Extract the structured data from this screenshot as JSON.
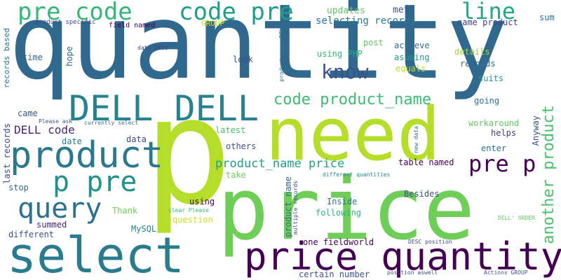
{
  "words": [
    {
      "text": "quantity",
      "color": "#31688e"
    },
    {
      "text": "p",
      "color": "#b5de2b"
    },
    {
      "text": "price",
      "color": "#6ece58"
    },
    {
      "text": "need",
      "color": "#b5de2b"
    },
    {
      "text": "select",
      "color": "#287c8e"
    },
    {
      "text": "price quantity",
      "color": "#440154"
    },
    {
      "text": "DELL DELL",
      "color": "#26828e"
    },
    {
      "text": "product",
      "color": "#2a788e"
    },
    {
      "text": "p pre",
      "color": "#21918c"
    },
    {
      "text": "query",
      "color": "#2c728e"
    },
    {
      "text": "pre code",
      "color": "#35b779"
    },
    {
      "text": "code pre",
      "color": "#1f9e89"
    },
    {
      "text": "line",
      "color": "#22a884"
    },
    {
      "text": "know",
      "color": "#3b528b"
    },
    {
      "text": "pre p",
      "color": "#440154"
    },
    {
      "text": "code product_name",
      "color": "#3dbc74"
    },
    {
      "text": "product_name price",
      "color": "#1fa088"
    },
    {
      "text": "another product",
      "color": "#4ac16d"
    },
    {
      "text": "DELL code",
      "color": "#482475"
    },
    {
      "text": "updates",
      "color": "#5ec962"
    },
    {
      "text": "met",
      "color": "#3b528b"
    },
    {
      "text": "selecting records",
      "color": "#29798e"
    },
    {
      "text": "name product",
      "color": "#433e85"
    },
    {
      "text": "sum",
      "color": "#2c728e"
    },
    {
      "text": "GROUP",
      "color": "#c8e020"
    },
    {
      "text": "field named",
      "color": "#440154"
    },
    {
      "text": "product specific",
      "color": "#3e4989"
    },
    {
      "text": "records based",
      "color": "#2a788e"
    },
    {
      "text": "time",
      "color": "#31688e"
    },
    {
      "text": "hope",
      "color": "#30697e"
    },
    {
      "text": "look",
      "color": "#3e4989"
    },
    {
      "text": "post",
      "color": "#5ec962"
    },
    {
      "text": "achieve",
      "color": "#2f6c8e"
    },
    {
      "text": "asuming",
      "color": "#1f998a"
    },
    {
      "text": "equals",
      "color": "#b5de2b"
    },
    {
      "text": "details",
      "color": "#a2da37"
    },
    {
      "text": "records",
      "color": "#31688e"
    },
    {
      "text": "suits",
      "color": "#1f9e89"
    },
    {
      "text": "using PHP",
      "color": "#2eb37c"
    },
    {
      "text": "date DESC",
      "color": "#3e4989"
    },
    {
      "text": "product_name DELL'",
      "color": "#2a788e"
    },
    {
      "text": "came",
      "color": "#3b528b"
    },
    {
      "text": "Please ask",
      "color": "#3b528b"
    },
    {
      "text": "currently select",
      "color": "#2c728e"
    },
    {
      "text": "going",
      "color": "#2c728e"
    },
    {
      "text": "workaround",
      "color": "#5ec962"
    },
    {
      "text": "helps",
      "color": "#433e85"
    },
    {
      "text": "Anyway",
      "color": "#3b528b"
    },
    {
      "text": "latest",
      "color": "#4ac16d"
    },
    {
      "text": "data",
      "color": "#3e4989"
    },
    {
      "text": "date",
      "color": "#2a788e"
    },
    {
      "text": "others",
      "color": "#3b528b"
    },
    {
      "text": "enter",
      "color": "#2c728e"
    },
    {
      "text": "last records",
      "color": "#3e4989"
    },
    {
      "text": "new data",
      "color": "#2c728e"
    },
    {
      "text": "take",
      "color": "#6ece58"
    },
    {
      "text": "table named",
      "color": "#440154"
    },
    {
      "text": "different quantities",
      "color": "#26828e"
    },
    {
      "text": "stop",
      "color": "#31688e"
    },
    {
      "text": "Besides",
      "color": "#3b528b"
    },
    {
      "text": "using",
      "color": "#440154"
    },
    {
      "text": "product name",
      "color": "#31688e"
    },
    {
      "text": "multiple records",
      "color": "#3b528b"
    },
    {
      "text": "Inside",
      "color": "#2c728e"
    },
    {
      "text": "following",
      "color": "#2eb37c"
    },
    {
      "text": "Thank",
      "color": "#6ece58"
    },
    {
      "text": "clear Please",
      "color": "#35b779"
    },
    {
      "text": "question",
      "color": "#c8e020"
    },
    {
      "text": "summed",
      "color": "#482475"
    },
    {
      "text": "MySQL",
      "color": "#26828e"
    },
    {
      "text": "different",
      "color": "#3b528b"
    },
    {
      "text": "DELL' ORDER",
      "color": "#5ec962"
    },
    {
      "text": "one fieldworld",
      "color": "#440154"
    },
    {
      "text": "DESC position",
      "color": "#3e4989"
    },
    {
      "text": "certain number",
      "color": "#3b528b"
    },
    {
      "text": "position aswell",
      "color": "#3b528b"
    },
    {
      "text": "Actions GROUP",
      "color": "#3b528b"
    }
  ]
}
